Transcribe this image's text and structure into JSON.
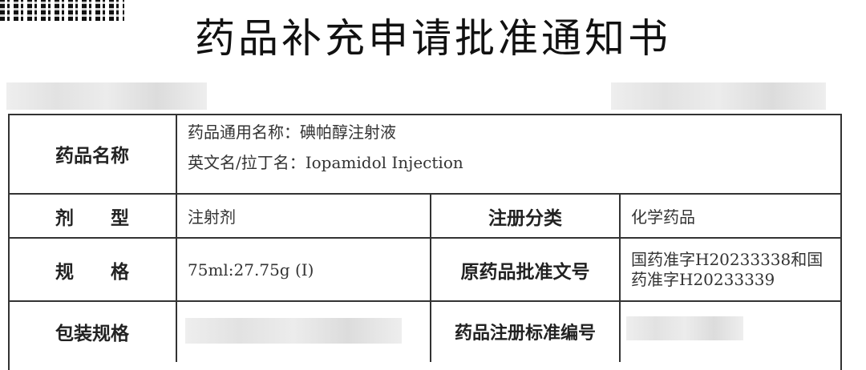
{
  "title": "药品补充申请批准通知书",
  "rows": {
    "name_label": "药品名称",
    "generic_name": "药品通用名称：碘帕醇注射液",
    "english_name": "英文名/拉丁名：Iopamidol Injection",
    "dosage_label": "剂　　型",
    "dosage_value": "注射剂",
    "reg_class_label": "注册分类",
    "reg_class_value": "化学药品",
    "spec_label": "规　　格",
    "spec_value": "75ml:27.75g (I)",
    "orig_approval_label": "原药品批准文号",
    "orig_approval_value": "国药准字H20233338和国药准字H20233339",
    "package_label": "包装规格",
    "std_no_label": "药品注册标准编号"
  }
}
